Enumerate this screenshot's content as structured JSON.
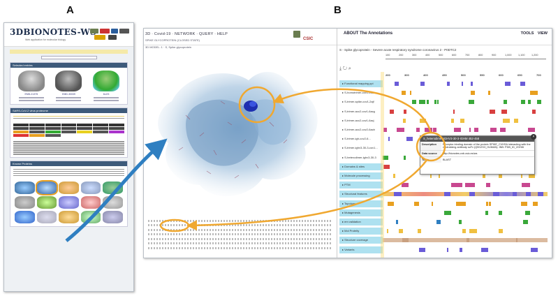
{
  "labels": {
    "a": "A",
    "b": "B"
  },
  "site": {
    "logo": "3DBIONOTES-WS",
    "sub": "Web application for molecular biology",
    "section1": "Selected entries",
    "entries": [
      "EMD-21375",
      "EMD-30039",
      "6LZG"
    ],
    "section2": "SARS-CoV-2 virus proteome",
    "section3": "Known Proteins"
  },
  "app": {
    "nav": "3D · Covid-19 · NETWORK · QUERY · HELP",
    "sub1": "SPIKE GLYCOPROTEIN (CLOSED STATE)",
    "sub2": "3D MODEL: 1 · S, Spike glycoprotein",
    "about": "ABOUT The Annotations",
    "tools": "TOOLS VIEW",
    "csic": "CSIC",
    "track_header": "S - Spike glycoprotein - Severe acute respiratory syndrome coronavirus 2 - P0DTC2",
    "ruler_ticks": [
      "100",
      "200",
      "300",
      "400",
      "500",
      "600",
      "700",
      "800",
      "900",
      "1,000",
      "1,100",
      "1,200"
    ],
    "axis_ticks": [
      "200",
      "300",
      "400",
      "450",
      "500",
      "550",
      "600",
      "650",
      "700"
    ],
    "rows": [
      {
        "label": "Functional mapping ppi",
        "blue": true
      },
      {
        "label": "S-homotrimer-cov1-2u6b",
        "blue": false
      },
      {
        "label": "S-trimer-spike-cov1-2ajf",
        "blue": false
      },
      {
        "label": "S-trimer-acc2-cov1-6acg",
        "blue": false
      },
      {
        "label": "S-trimer-acc2-cov1-6acj",
        "blue": false
      },
      {
        "label": "S-trimer-acc2-cov2-6acb",
        "blue": false
      },
      {
        "label": "S-trimer-igh-cov2-6...",
        "blue": false
      },
      {
        "label": "S-trimer-ighv3-30-3-cov1...",
        "blue": false
      },
      {
        "label": "S-heterodimer-ighv3-30-3",
        "blue": false
      },
      {
        "label": "Domains & sites",
        "blue": true
      },
      {
        "label": "Molecule processing",
        "blue": true
      },
      {
        "label": "PTM",
        "blue": true
      },
      {
        "label": "Structural features",
        "blue": true
      },
      {
        "label": "Topology",
        "blue": true
      },
      {
        "label": "Mutagenesis",
        "blue": true
      },
      {
        "label": "em validation",
        "blue": true
      },
      {
        "label": "Mol Proteity",
        "blue": true
      },
      {
        "label": "Structure coverage",
        "blue": true
      },
      {
        "label": "Variants",
        "blue": true
      }
    ],
    "bottom_axis_label": "Proteity",
    "tooltip": {
      "title": "S_heterodimer-IGHV3-30-3-IGHM 452-458",
      "close": "×",
      "description_key": "Description",
      "description": "Receptor-binding domain of the protein SPIKE_CVHSA interacting with the neutralizing antibody scFv (Q9GZX3_HUMAN). INB: PDB_ID_2GHW",
      "data_source_key": "Data source",
      "data_source": "http://bionotes.cnb.csic.es/ws",
      "tools_key": "Tools",
      "tools": "BLAST"
    }
  },
  "colors": {
    "orange": "#f0a830",
    "arrow": "#2f7fc1",
    "track_blue": "#aee1f0"
  }
}
